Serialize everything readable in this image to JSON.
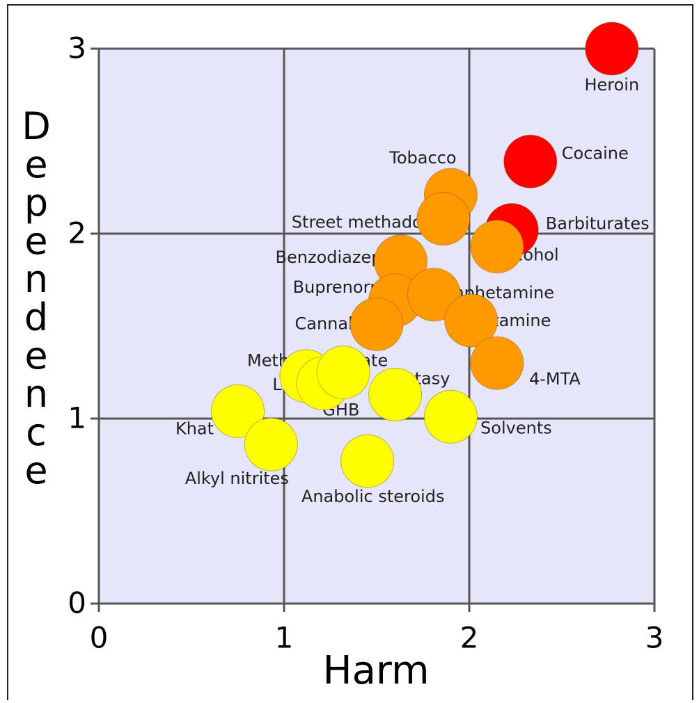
{
  "chart_data": {
    "type": "scatter",
    "x_label": "Harm",
    "y_label": "Dependence",
    "xlim": [
      0,
      3
    ],
    "ylim": [
      0,
      3
    ],
    "xticks": [
      0,
      1,
      2,
      3
    ],
    "yticks": [
      0,
      1,
      2,
      3
    ],
    "grid": true,
    "points": [
      {
        "name": "Heroin",
        "x": 2.77,
        "y": 3.0,
        "color": "#ff0000"
      },
      {
        "name": "Cocaine",
        "x": 2.33,
        "y": 2.39,
        "color": "#ff0000"
      },
      {
        "name": "Barbiturates",
        "x": 2.23,
        "y": 2.02,
        "color": "#ff0000"
      },
      {
        "name": "Tobacco",
        "x": 1.9,
        "y": 2.21,
        "color": "#ff9900"
      },
      {
        "name": "Street methadone",
        "x": 1.86,
        "y": 2.08,
        "color": "#ff9900"
      },
      {
        "name": "Alcohol",
        "x": 2.15,
        "y": 1.93,
        "color": "#ff9900"
      },
      {
        "name": "Benzodiazepines",
        "x": 1.63,
        "y": 1.85,
        "color": "#ff9900"
      },
      {
        "name": "Buprenorphine",
        "x": 1.6,
        "y": 1.64,
        "color": "#ff9900"
      },
      {
        "name": "Amphetamine",
        "x": 1.81,
        "y": 1.67,
        "color": "#ff9900"
      },
      {
        "name": "Ketamine",
        "x": 2.01,
        "y": 1.53,
        "color": "#ff9900"
      },
      {
        "name": "Cannabis",
        "x": 1.5,
        "y": 1.51,
        "color": "#ff9900"
      },
      {
        "name": "4-MTA",
        "x": 2.15,
        "y": 1.3,
        "color": "#ff9900"
      },
      {
        "name": "LSD",
        "x": 1.12,
        "y": 1.23,
        "color": "#ffff00"
      },
      {
        "name": "GHB",
        "x": 1.21,
        "y": 1.19,
        "color": "#ffff00"
      },
      {
        "name": "Methylphenidate",
        "x": 1.32,
        "y": 1.25,
        "color": "#ffff00"
      },
      {
        "name": "Ecstasy",
        "x": 1.6,
        "y": 1.13,
        "color": "#ffff00"
      },
      {
        "name": "Solvents",
        "x": 1.9,
        "y": 1.01,
        "color": "#ffff00"
      },
      {
        "name": "Khat",
        "x": 0.75,
        "y": 1.04,
        "color": "#ffff00"
      },
      {
        "name": "Alkyl nitrites",
        "x": 0.93,
        "y": 0.86,
        "color": "#ffff00"
      },
      {
        "name": "Anabolic steroids",
        "x": 1.45,
        "y": 0.77,
        "color": "#ffff00"
      }
    ]
  }
}
